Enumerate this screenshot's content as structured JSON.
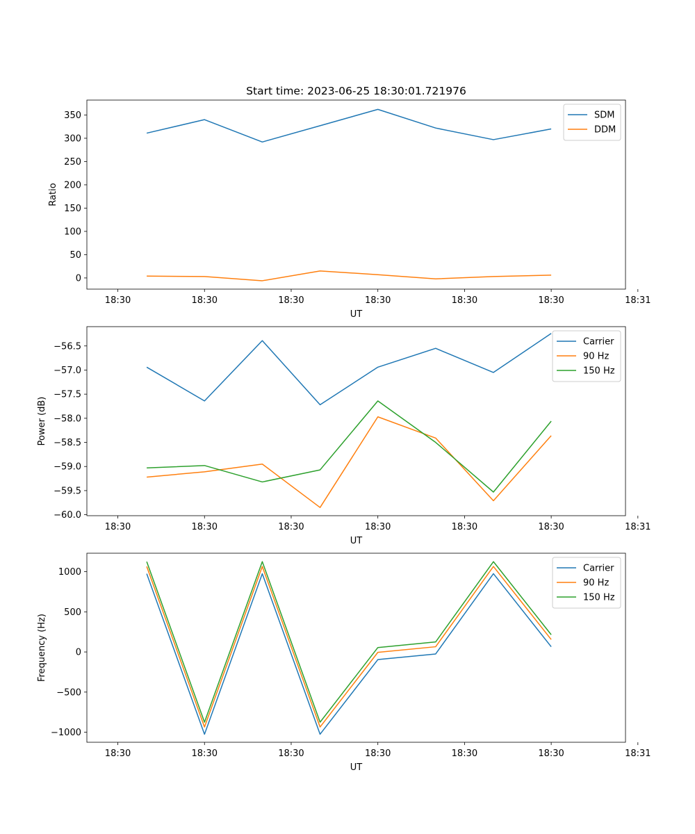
{
  "chart_data": [
    {
      "type": "line",
      "title": "Start time: 2023-06-25 18:30:01.721976",
      "xlabel": "UT",
      "ylabel": "Ratio",
      "x": [
        3.5,
        10.5,
        17.5,
        24.5,
        31.5,
        38.5,
        45.5,
        52.5
      ],
      "xlim": [
        -3.75,
        61.5
      ],
      "xticks": [
        0,
        10.5,
        21,
        31.5,
        42,
        52.5,
        63
      ],
      "xtick_labels": [
        "18:30",
        "18:30",
        "18:30",
        "18:30",
        "18:30",
        "18:30",
        "18:31"
      ],
      "ylim": [
        -24,
        382
      ],
      "yticks": [
        0,
        50,
        100,
        150,
        200,
        250,
        300,
        350
      ],
      "ytick_labels": [
        "0",
        "50",
        "100",
        "150",
        "200",
        "250",
        "300",
        "350"
      ],
      "grid": false,
      "legend": "upper-right",
      "series": [
        {
          "name": "SDM",
          "color": "#1f77b4",
          "values": [
            311,
            340,
            292,
            327,
            362,
            322,
            297,
            320
          ]
        },
        {
          "name": "DDM",
          "color": "#ff7f0e",
          "values": [
            4,
            3,
            -6,
            15,
            7,
            -2,
            3,
            6
          ]
        }
      ]
    },
    {
      "type": "line",
      "title": "",
      "xlabel": "UT",
      "ylabel": "Power (dB)",
      "x": [
        3.5,
        10.5,
        17.5,
        24.5,
        31.5,
        38.5,
        45.5,
        52.5
      ],
      "xlim": [
        -3.75,
        61.5
      ],
      "xticks": [
        0,
        10.5,
        21,
        31.5,
        42,
        52.5,
        63
      ],
      "xtick_labels": [
        "18:30",
        "18:30",
        "18:30",
        "18:30",
        "18:30",
        "18:30",
        "18:31"
      ],
      "ylim": [
        -60.02,
        -56.1
      ],
      "yticks": [
        -60.0,
        -59.5,
        -59.0,
        -58.5,
        -58.0,
        -57.5,
        -57.0,
        -56.5
      ],
      "ytick_labels": [
        "−60.0",
        "−59.5",
        "−59.0",
        "−58.5",
        "−58.0",
        "−57.5",
        "−57.0",
        "−56.5"
      ],
      "grid": false,
      "legend": "upper-right",
      "series": [
        {
          "name": "Carrier",
          "color": "#1f77b4",
          "values": [
            -56.94,
            -57.64,
            -56.39,
            -57.72,
            -56.94,
            -56.55,
            -57.05,
            -56.24
          ]
        },
        {
          "name": "90 Hz",
          "color": "#ff7f0e",
          "values": [
            -59.22,
            -59.11,
            -58.95,
            -59.85,
            -57.97,
            -58.41,
            -59.71,
            -58.36
          ]
        },
        {
          "name": "150 Hz",
          "color": "#2ca02c",
          "values": [
            -59.03,
            -58.98,
            -59.32,
            -59.07,
            -57.64,
            -58.5,
            -59.53,
            -58.06
          ]
        }
      ]
    },
    {
      "type": "line",
      "title": "",
      "xlabel": "UT",
      "ylabel": "Frequency (Hz)",
      "x": [
        3.5,
        10.5,
        17.5,
        24.5,
        31.5,
        38.5,
        45.5,
        52.5
      ],
      "xlim": [
        -3.75,
        61.5
      ],
      "xticks": [
        0,
        10.5,
        21,
        31.5,
        42,
        52.5,
        63
      ],
      "xtick_labels": [
        "18:30",
        "18:30",
        "18:30",
        "18:30",
        "18:30",
        "18:30",
        "18:31"
      ],
      "ylim": [
        -1125,
        1230
      ],
      "yticks": [
        -1000,
        -500,
        0,
        500,
        1000
      ],
      "ytick_labels": [
        "−1000",
        "−500",
        "0",
        "500",
        "1000"
      ],
      "grid": false,
      "legend": "upper-right",
      "series": [
        {
          "name": "Carrier",
          "color": "#1f77b4",
          "values": [
            975,
            -1025,
            975,
            -1025,
            -95,
            -25,
            975,
            65
          ]
        },
        {
          "name": "90 Hz",
          "color": "#ff7f0e",
          "values": [
            1065,
            -935,
            1065,
            -935,
            -5,
            65,
            1065,
            155
          ]
        },
        {
          "name": "150 Hz",
          "color": "#2ca02c",
          "values": [
            1125,
            -875,
            1125,
            -875,
            55,
            125,
            1125,
            215
          ]
        }
      ]
    }
  ]
}
